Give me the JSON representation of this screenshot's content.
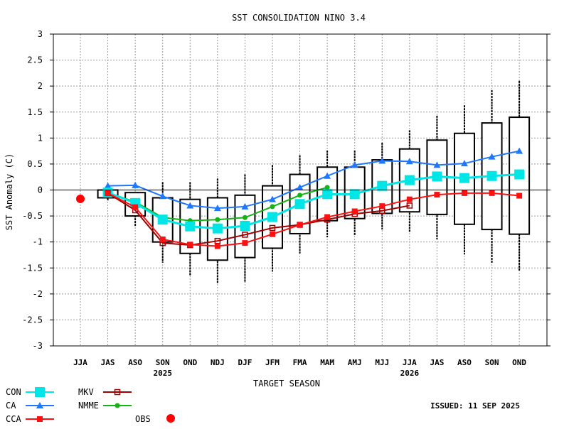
{
  "chart_data": {
    "type": "line",
    "title": "SST CONSOLIDATION NINO 3.4",
    "xlabel": "TARGET SEASON",
    "ylabel": "SST Anomaly (C)",
    "ylim": [
      -3,
      3
    ],
    "yticks": [
      "3",
      "2.5",
      "2",
      "1.5",
      "1",
      "0.5",
      "0",
      "-0.5",
      "-1",
      "-1.5",
      "-2",
      "-2.5",
      "-3"
    ],
    "ytick_values": [
      3,
      2.5,
      2,
      1.5,
      1,
      0.5,
      0,
      -0.5,
      -1,
      -1.5,
      -2,
      -2.5,
      -3
    ],
    "categories": [
      "JJA",
      "JAS",
      "ASO",
      "SON",
      "OND",
      "NDJ",
      "DJF",
      "JFM",
      "FMA",
      "MAM",
      "AMJ",
      "MJJ",
      "JJA",
      "JAS",
      "ASO",
      "SON",
      "OND"
    ],
    "year_labels": [
      {
        "index": 3,
        "label": "2025"
      },
      {
        "index": 12,
        "label": "2026"
      }
    ],
    "grid": true,
    "boxes": [
      null,
      {
        "top": 0.0,
        "bottom": -0.15,
        "whi": 0.0,
        "wlo": -0.2
      },
      {
        "top": -0.05,
        "bottom": -0.5,
        "whi": -0.05,
        "wlo": -0.7
      },
      {
        "top": -0.15,
        "bottom": -1.0,
        "whi": 0.15,
        "wlo": -1.4
      },
      {
        "top": -0.18,
        "bottom": -1.22,
        "whi": 0.15,
        "wlo": -1.65
      },
      {
        "top": -0.15,
        "bottom": -1.35,
        "whi": 0.22,
        "wlo": -1.8
      },
      {
        "top": -0.1,
        "bottom": -1.3,
        "whi": 0.3,
        "wlo": -1.78
      },
      {
        "top": 0.08,
        "bottom": -1.12,
        "whi": 0.48,
        "wlo": -1.57
      },
      {
        "top": 0.3,
        "bottom": -0.84,
        "whi": 0.67,
        "wlo": -1.22
      },
      {
        "top": 0.44,
        "bottom": -0.59,
        "whi": 0.76,
        "wlo": -0.91
      },
      {
        "top": 0.44,
        "bottom": -0.55,
        "whi": 0.76,
        "wlo": -0.87
      },
      {
        "top": 0.58,
        "bottom": -0.45,
        "whi": 0.91,
        "wlo": -0.76
      },
      {
        "top": 0.79,
        "bottom": -0.42,
        "whi": 1.15,
        "wlo": -0.81
      },
      {
        "top": 0.96,
        "bottom": -0.47,
        "whi": 1.43,
        "wlo": -0.95
      },
      {
        "top": 1.09,
        "bottom": -0.66,
        "whi": 1.63,
        "wlo": -1.24
      },
      {
        "top": 1.29,
        "bottom": -0.76,
        "whi": 1.92,
        "wlo": -1.41
      },
      {
        "top": 1.4,
        "bottom": -0.85,
        "whi": 2.1,
        "wlo": -1.56
      }
    ],
    "series": [
      {
        "name": "CA",
        "color": "#1e78ff",
        "marker": "triangle",
        "values": [
          null,
          0.08,
          0.09,
          -0.12,
          -0.3,
          -0.35,
          -0.32,
          -0.18,
          0.05,
          0.27,
          0.48,
          0.56,
          0.55,
          0.48,
          0.51,
          0.64,
          0.75
        ]
      },
      {
        "name": "NMME",
        "color": "#14b414",
        "marker": "dot",
        "values": [
          null,
          -0.05,
          -0.23,
          -0.53,
          -0.59,
          -0.57,
          -0.53,
          -0.32,
          -0.1,
          0.05,
          null,
          null,
          null,
          null,
          null,
          null,
          null
        ]
      },
      {
        "name": "CON",
        "color": "#00e6e6",
        "marker": "bigsquare",
        "values": [
          null,
          -0.05,
          -0.25,
          -0.57,
          -0.7,
          -0.74,
          -0.69,
          -0.52,
          -0.27,
          -0.08,
          -0.08,
          0.08,
          0.19,
          0.26,
          0.23,
          0.27,
          0.3
        ]
      },
      {
        "name": "MKV",
        "color": "#a00000",
        "marker": "opensquare",
        "values": [
          null,
          -0.06,
          -0.39,
          -1.02,
          -1.06,
          -0.98,
          -0.86,
          -0.73,
          -0.67,
          -0.57,
          -0.46,
          -0.4,
          -0.3,
          null,
          null,
          null,
          null
        ]
      },
      {
        "name": "CCA",
        "color": "#ff1010",
        "marker": "square",
        "values": [
          null,
          -0.06,
          -0.33,
          -0.95,
          -1.05,
          -1.08,
          -1.02,
          -0.85,
          -0.67,
          -0.52,
          -0.41,
          -0.31,
          -0.18,
          -0.09,
          -0.06,
          -0.06,
          -0.11
        ]
      },
      {
        "name": "OBS",
        "color": "#ff0000",
        "marker": "circle",
        "values": [
          -0.17,
          null,
          null,
          null,
          null,
          null,
          null,
          null,
          null,
          null,
          null,
          null,
          null,
          null,
          null,
          null,
          null
        ]
      }
    ],
    "legend_placement": "bottom-left"
  },
  "issued": "ISSUED: 11 SEP 2025"
}
